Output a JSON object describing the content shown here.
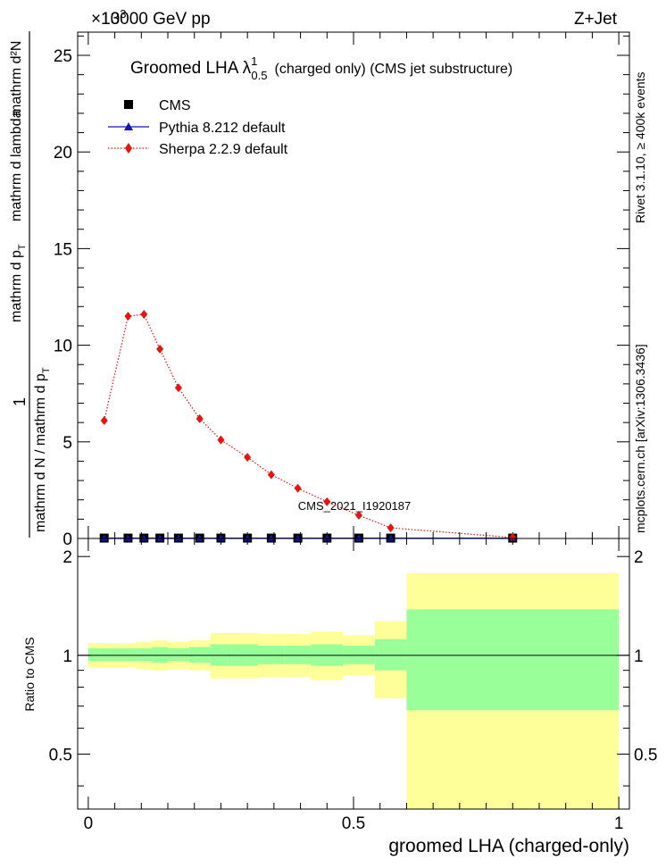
{
  "header": {
    "collision": "13000 GeV pp",
    "exponent": "×10",
    "exponent_power": "3",
    "process": "Z+Jet"
  },
  "side_labels": {
    "rivet": "Rivet 3.1.10, ≥ 400k events",
    "mcplots": "mcplots.cern.ch [arXiv:1306.3436]"
  },
  "chart_data": [
    {
      "type": "scatter",
      "title": "Groomed LHA  λ",
      "title_sup": "1",
      "title_sub": "0.5",
      "title_suffix": "(charged only) (CMS jet substructure)",
      "ylabel_numerator": "1",
      "ylabel_denominator": "mathrm d N / mathrm d p",
      "ylabel_rest": "mathrm d p",
      "ylabel_tail": "mathrm d lambda",
      "ylabel_top": "mathrm d²N",
      "ylabel_sub": "T",
      "watermark": "CMS_2021_I1920187",
      "xlim": [
        -0.02,
        1.02
      ],
      "ylim": [
        0,
        26.2
      ],
      "y_ticks": [
        "0",
        "5",
        "10",
        "15",
        "20",
        "25"
      ],
      "legend_position": "top-left",
      "series": [
        {
          "name": "CMS",
          "marker": "square",
          "color": "#000000",
          "x": [
            0.03,
            0.075,
            0.105,
            0.135,
            0.17,
            0.21,
            0.25,
            0.3,
            0.345,
            0.395,
            0.45,
            0.51,
            0.57,
            0.8
          ],
          "values": [
            0.02,
            0.02,
            0.02,
            0.02,
            0.02,
            0.02,
            0.02,
            0.02,
            0.02,
            0.02,
            0.02,
            0.02,
            0.02,
            0.02
          ]
        },
        {
          "name": "Pythia 8.212 default",
          "marker": "triangle",
          "color": "#1515b4",
          "x": [
            0.03,
            0.075,
            0.105,
            0.135,
            0.17,
            0.21,
            0.25,
            0.3,
            0.345,
            0.395,
            0.45,
            0.51,
            0.57,
            0.8
          ],
          "values": [
            0.02,
            0.02,
            0.02,
            0.02,
            0.02,
            0.02,
            0.02,
            0.02,
            0.02,
            0.02,
            0.02,
            0.02,
            0.02,
            0.02
          ]
        },
        {
          "name": "Sherpa 2.2.9 default",
          "marker": "diamond",
          "color": "#e8130f",
          "x": [
            0.03,
            0.075,
            0.105,
            0.135,
            0.17,
            0.21,
            0.25,
            0.3,
            0.345,
            0.395,
            0.45,
            0.51,
            0.57,
            0.8
          ],
          "values": [
            6.1,
            11.5,
            11.6,
            9.8,
            7.8,
            6.2,
            5.1,
            4.2,
            3.3,
            2.6,
            1.9,
            1.2,
            0.55,
            0.05
          ]
        }
      ]
    },
    {
      "type": "area",
      "ylabel": "Ratio to CMS",
      "xlabel": "groomed LHA (charged-only)",
      "xlim": [
        -0.02,
        1.02
      ],
      "ylim": [
        0.34,
        2.27
      ],
      "x_ticks": [
        "0",
        "0.5",
        "1"
      ],
      "y_ticks": [
        "0.5",
        "1",
        "2"
      ],
      "reference_line": 1,
      "bins": [
        {
          "lo": 0.0,
          "hi": 0.06,
          "inner": [
            0.96,
            1.05
          ],
          "outer": [
            0.92,
            1.09
          ]
        },
        {
          "lo": 0.06,
          "hi": 0.09,
          "inner": [
            0.96,
            1.05
          ],
          "outer": [
            0.92,
            1.09
          ]
        },
        {
          "lo": 0.09,
          "hi": 0.12,
          "inner": [
            0.96,
            1.05
          ],
          "outer": [
            0.91,
            1.1
          ]
        },
        {
          "lo": 0.12,
          "hi": 0.15,
          "inner": [
            0.95,
            1.06
          ],
          "outer": [
            0.9,
            1.11
          ]
        },
        {
          "lo": 0.15,
          "hi": 0.19,
          "inner": [
            0.96,
            1.05
          ],
          "outer": [
            0.91,
            1.1
          ]
        },
        {
          "lo": 0.19,
          "hi": 0.23,
          "inner": [
            0.95,
            1.06
          ],
          "outer": [
            0.9,
            1.11
          ]
        },
        {
          "lo": 0.23,
          "hi": 0.27,
          "inner": [
            0.93,
            1.08
          ],
          "outer": [
            0.85,
            1.17
          ]
        },
        {
          "lo": 0.27,
          "hi": 0.32,
          "inner": [
            0.93,
            1.08
          ],
          "outer": [
            0.85,
            1.17
          ]
        },
        {
          "lo": 0.32,
          "hi": 0.37,
          "inner": [
            0.94,
            1.07
          ],
          "outer": [
            0.86,
            1.16
          ]
        },
        {
          "lo": 0.37,
          "hi": 0.42,
          "inner": [
            0.94,
            1.07
          ],
          "outer": [
            0.86,
            1.16
          ]
        },
        {
          "lo": 0.42,
          "hi": 0.48,
          "inner": [
            0.93,
            1.08
          ],
          "outer": [
            0.84,
            1.18
          ]
        },
        {
          "lo": 0.48,
          "hi": 0.54,
          "inner": [
            0.94,
            1.07
          ],
          "outer": [
            0.87,
            1.15
          ]
        },
        {
          "lo": 0.54,
          "hi": 0.6,
          "inner": [
            0.9,
            1.12
          ],
          "outer": [
            0.74,
            1.27
          ]
        },
        {
          "lo": 0.6,
          "hi": 1.0,
          "inner": [
            0.68,
            1.38
          ],
          "outer": [
            0.34,
            1.78
          ]
        }
      ]
    }
  ],
  "colors": {
    "band_inner": "#99ff99",
    "band_outer": "#ffff99",
    "side_text": "#777777",
    "watermark": "#9a9a9a"
  }
}
